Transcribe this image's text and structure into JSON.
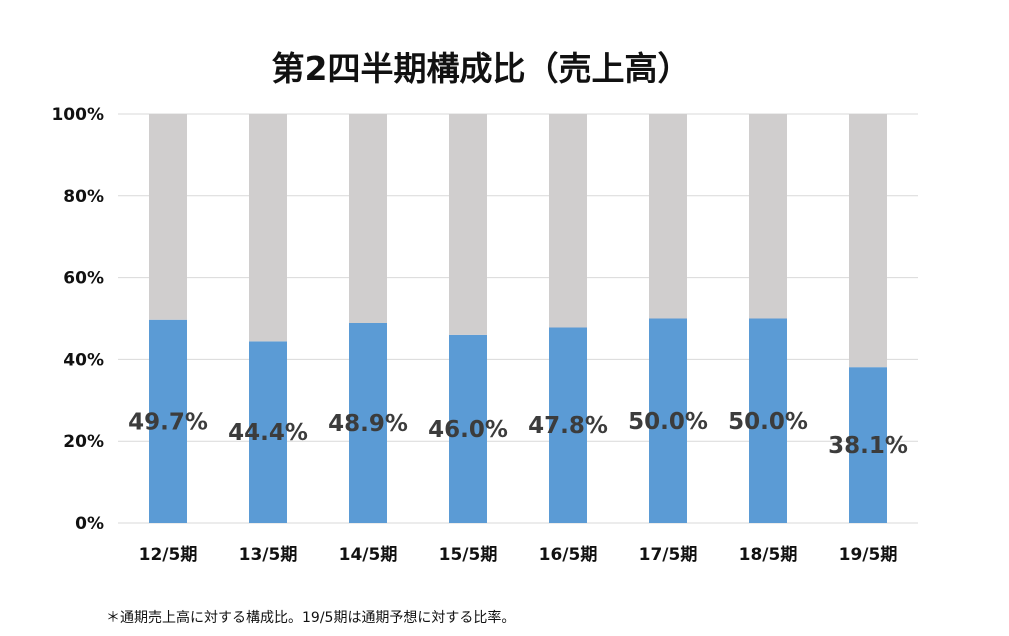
{
  "chart_data": {
    "type": "bar",
    "stacked": true,
    "percent_stacked": true,
    "title": "第2四半期構成比（売上高）",
    "categories": [
      "12/5期",
      "13/5期",
      "14/5期",
      "15/5期",
      "16/5期",
      "17/5期",
      "18/5期",
      "19/5期"
    ],
    "series": [
      {
        "values": [
          49.7,
          44.4,
          48.9,
          46.0,
          47.8,
          50.0,
          50.0,
          38.1
        ],
        "color": "#5b9bd5"
      },
      {
        "values": [
          50.3,
          55.6,
          51.1,
          54.0,
          52.2,
          50.0,
          50.0,
          61.9
        ],
        "color": "#d0cece"
      }
    ],
    "data_labels": [
      "49.7%",
      "44.4%",
      "48.9%",
      "46.0%",
      "47.8%",
      "50.0%",
      "50.0%",
      "38.1%"
    ],
    "yticks": [
      "0%",
      "20%",
      "40%",
      "60%",
      "80%",
      "100%"
    ],
    "ylim": [
      0,
      100
    ],
    "xlabel": "",
    "ylabel": "",
    "grid": true,
    "legend": "none"
  },
  "footnote": "＊通期売上高に対する構成比。19/5期は通期予想に対する比率。"
}
